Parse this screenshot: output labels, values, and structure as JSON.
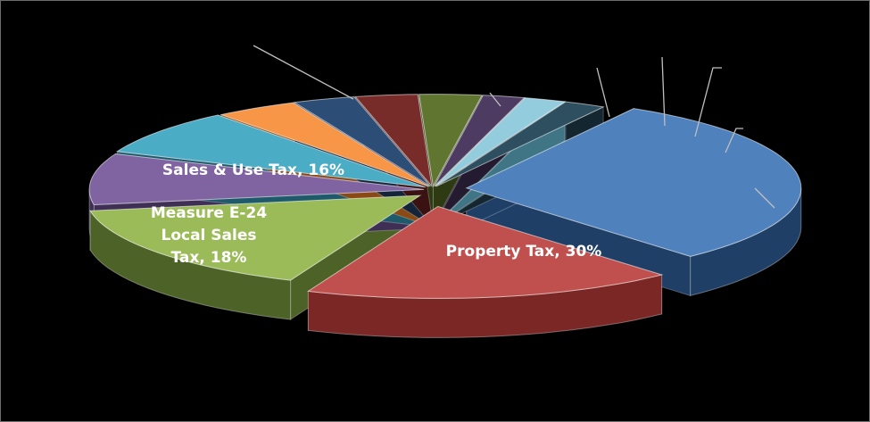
{
  "chart_data": {
    "type": "pie",
    "style": "3d-exploded",
    "title": "",
    "legend": "none",
    "slices": [
      {
        "name": "Property Tax",
        "label": "Property Tax, 30%",
        "value": 30,
        "color": "#4f81bd",
        "side": "#1f3f66"
      },
      {
        "name": "Measure E-24 Local Sales Tax",
        "label_lines": [
          "Measure E-24",
          "Local Sales",
          "Tax, 18%"
        ],
        "value": 18,
        "color": "#c0504d",
        "side": "#7a2725"
      },
      {
        "name": "Sales & Use Tax",
        "label": "Sales & Use Tax, 16%",
        "value": 16,
        "color": "#9bbb59",
        "side": "#4d6226"
      },
      {
        "value": 9,
        "color": "#8064a2",
        "side": "#3f2f55"
      },
      {
        "value": 8,
        "color": "#4bacc6",
        "side": "#1e5a6a"
      },
      {
        "value": 4,
        "color": "#f79646",
        "side": "#8a4a16"
      },
      {
        "value": 3,
        "color": "#2c4d75",
        "side": "#14253a"
      },
      {
        "value": 3,
        "color": "#772c2a",
        "side": "#3a1211"
      },
      {
        "value": 3,
        "color": "#5f7530",
        "side": "#2d3a12"
      },
      {
        "value": 2,
        "color": "#4d3b62",
        "side": "#241b30"
      },
      {
        "value": 2,
        "color": "#93cddd",
        "side": "#3f7585"
      },
      {
        "value": 2,
        "color": "#2d4f60",
        "side": "#14262f"
      }
    ]
  }
}
